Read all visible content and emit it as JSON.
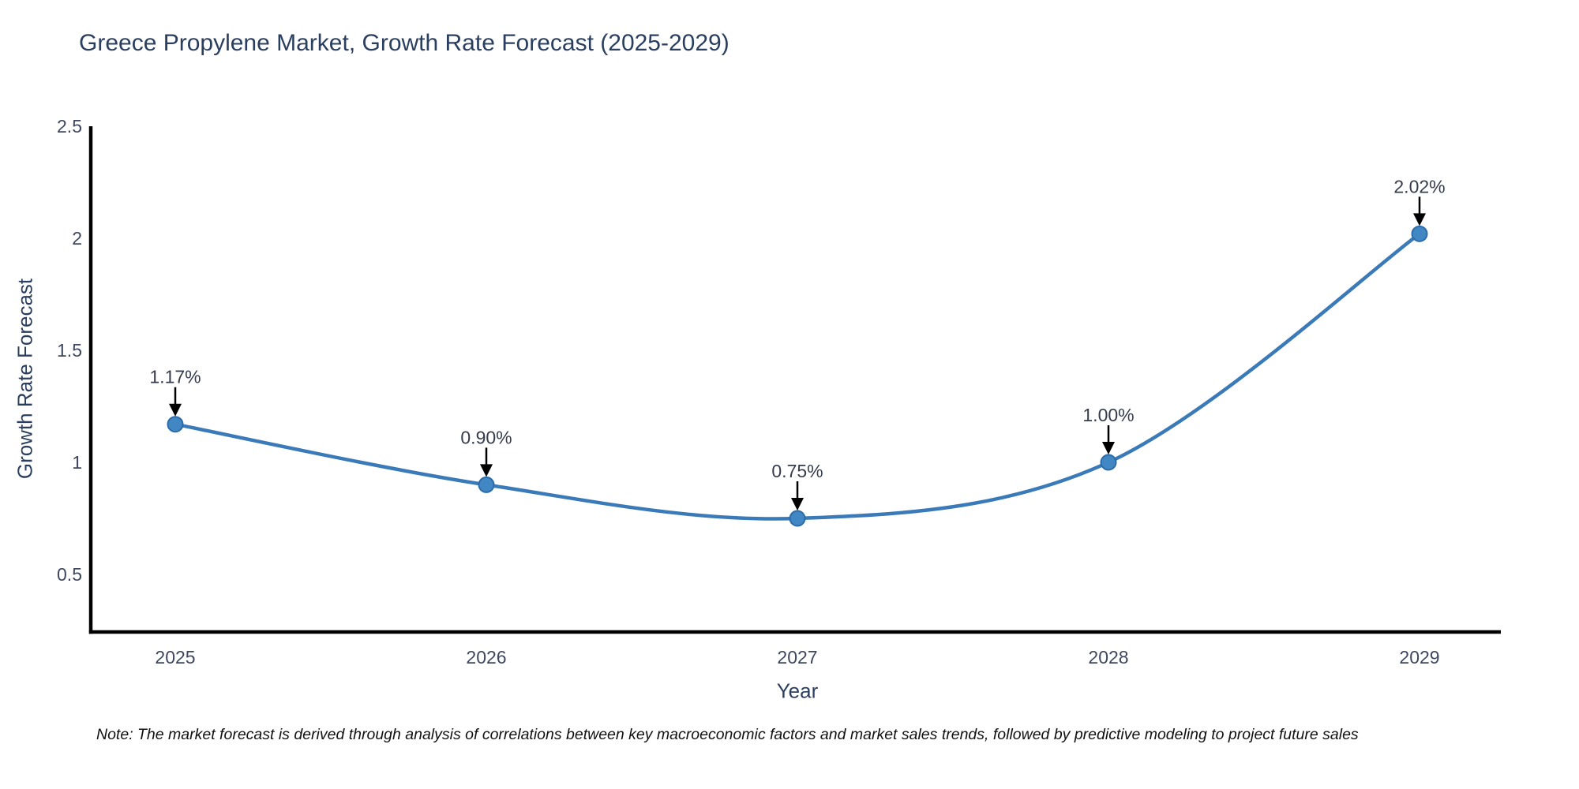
{
  "note": "Note: The market forecast is derived through analysis of correlations between key macroeconomic factors and market sales trends, followed by predictive modeling to project future sales",
  "colors": {
    "title": "#2a3f5f",
    "tick_label": "#3d4760",
    "annotation_text": "#363c4e",
    "annotation_arrow": "#000000",
    "axis_line": "#000000",
    "line": "#3a7ab8",
    "marker_fill": "#4187c3",
    "marker_edge": "#2c6ca8",
    "note_text": "#111111"
  },
  "chart_data": {
    "type": "line",
    "title": "Greece Propylene Market, Growth Rate Forecast (2025-2029)",
    "xlabel": "Year",
    "ylabel": "Growth Rate Forecast",
    "x": [
      "2025",
      "2026",
      "2027",
      "2028",
      "2029"
    ],
    "values": [
      1.17,
      0.9,
      0.75,
      1.0,
      2.02
    ],
    "point_labels": [
      "1.17%",
      "0.90%",
      "0.75%",
      "1.00%",
      "2.02%"
    ],
    "yticks": [
      0.5,
      1,
      1.5,
      2,
      2.5
    ],
    "ytick_labels": [
      "0.5",
      "1",
      "1.5",
      "2",
      "2.5"
    ],
    "ylim": [
      0.24,
      2.5
    ],
    "line_shape": "spline",
    "grid": false,
    "legend": "none",
    "annotations": "value labels with downward arrows above each point"
  }
}
